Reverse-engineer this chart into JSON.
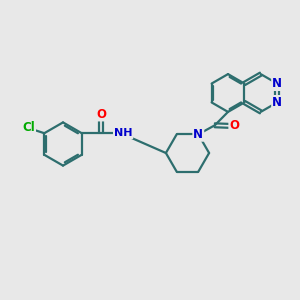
{
  "bg_color": "#e8e8e8",
  "atom_colors": {
    "C": "#2d6e6e",
    "N": "#0000cc",
    "O": "#ff0000",
    "Cl": "#00aa00",
    "H": "#2d6e6e"
  },
  "bond_color": "#2d6e6e",
  "bond_width": 1.6,
  "font_size": 8.5,
  "figsize": [
    3.0,
    3.0
  ],
  "dpi": 100
}
